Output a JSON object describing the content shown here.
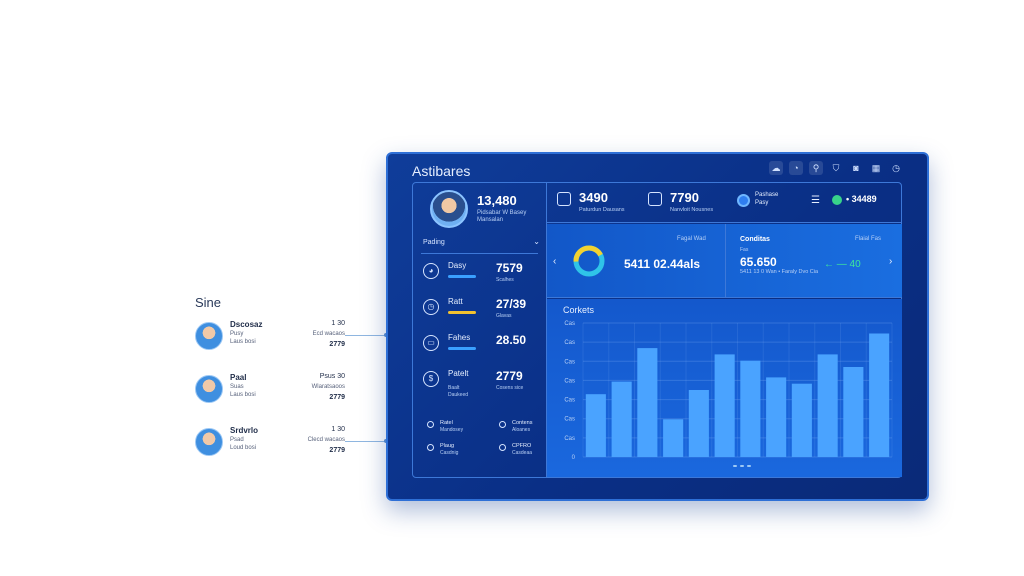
{
  "side": {
    "title": "Sine",
    "users": [
      {
        "name": "Dscosaz",
        "line1": "Pusy",
        "line2": "Laus bosi",
        "num1": "1 30",
        "num2": "Ecd wacaos",
        "num3": "2779"
      },
      {
        "name": "Paal",
        "line1": "Suas",
        "line2": "Laus bosi",
        "num1": "Psus 30",
        "num2": "Wlaratsaoos",
        "num3": "2779"
      },
      {
        "name": "Srdvrlo",
        "line1": "Psad",
        "line2": "Loud bosi",
        "num1": "1 30",
        "num2": "Clecd wacaos",
        "num3": "2779"
      }
    ]
  },
  "panel": {
    "title": "Astibares",
    "toolbar_icons": [
      "cloud-icon",
      "pie-icon",
      "link-icon",
      "shield-icon",
      "box-icon",
      "window-icon",
      "clock-icon"
    ]
  },
  "profile": {
    "value": "13,480",
    "sub": "Pidsabar W Basey Mansalan"
  },
  "section": {
    "label": "Pading"
  },
  "stats": [
    {
      "label": "Dasy",
      "value": "7579",
      "sub1": "",
      "sub2": "Scalhes",
      "sub3": "",
      "bar_color": "#3aa0ff"
    },
    {
      "label": "Ratt",
      "value": "27/39",
      "sub1": "",
      "sub2": "Glavas",
      "sub3": "",
      "bar_color": "#f2c230"
    },
    {
      "label": "Fahes",
      "value": "28.50",
      "sub1": "",
      "sub2": "",
      "sub3": "",
      "bar_color": "#3aa0ff"
    },
    {
      "label": "Patelt",
      "value": "2779",
      "sub1": "Baalt",
      "sub2": "Cosens sice",
      "sub3": "Daukeed",
      "bar_color": ""
    }
  ],
  "legend": [
    {
      "t1": "Ratel",
      "t2": "Mandosey"
    },
    {
      "t1": "Contens",
      "t2": "Aloanes"
    },
    {
      "t1": "Plaug",
      "t2": "Casdnig"
    },
    {
      "t1": "CPFRO",
      "t2": "Casdeaa"
    }
  ],
  "top": {
    "stat1": {
      "value": "3490",
      "sub": "Paturdun Dausans"
    },
    "stat2": {
      "value": "7790",
      "sub": "Nanvloit Nousnes"
    },
    "badge": {
      "t1": "Pashase",
      "t2": "Pasy"
    },
    "right_value": "• 34489"
  },
  "mid": {
    "tag": "Fagal Wad",
    "value": "5411 02.44als",
    "right_title": "Conditas",
    "right_sub": "Fas",
    "right_tag": "Flaial Fas",
    "right_value": "65.650",
    "right_sub2": "5411 13 0 Wan • Faraly Dvo Cia",
    "green": "← — 40"
  },
  "chart_data": {
    "type": "bar",
    "title": "Corkets",
    "ytick_labels": [
      "Cas",
      "Cas",
      "Cas",
      "Cas",
      "Cas",
      "Cas",
      "Cas",
      "0"
    ],
    "values": [
      30,
      36,
      52,
      18,
      32,
      49,
      46,
      38,
      35,
      49,
      43,
      59
    ],
    "ylim": [
      0,
      64
    ],
    "grid": true,
    "bar_color": "#4aa3ff"
  }
}
